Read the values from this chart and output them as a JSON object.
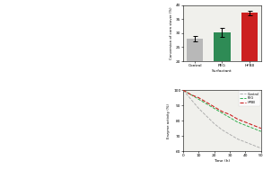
{
  "bar_categories": [
    "Control",
    "PEG",
    "HFBII"
  ],
  "bar_values": [
    28.0,
    30.3,
    37.2
  ],
  "bar_errors": [
    1.0,
    1.6,
    0.9
  ],
  "bar_colors": [
    "#b8b8b8",
    "#2e8b55",
    "#cc2020"
  ],
  "bar_ylabel": "Conversion of corn stover (%)",
  "bar_xlabel": "Surfactant",
  "bar_ylim": [
    20,
    40
  ],
  "bar_yticks": [
    20,
    25,
    30,
    35,
    40
  ],
  "line_xlabel": "Time (h)",
  "line_ylabel": "Enzyme activity (%)",
  "line_ylim": [
    60,
    100
  ],
  "line_yticks": [
    60,
    70,
    80,
    90,
    100
  ],
  "line_xlim": [
    0,
    50
  ],
  "line_xticks": [
    0,
    10,
    20,
    30,
    40,
    50
  ],
  "line_time": [
    0,
    5,
    10,
    15,
    20,
    25,
    30,
    35,
    40,
    45,
    50
  ],
  "control_values": [
    100,
    94,
    88,
    83,
    78,
    74,
    71,
    68,
    66,
    64,
    62
  ],
  "peg_values": [
    100,
    97,
    94,
    91,
    88,
    85,
    82,
    79,
    77,
    75,
    73
  ],
  "hfbii_values": [
    100,
    97,
    95,
    92,
    89,
    86,
    84,
    81,
    79,
    77,
    75
  ],
  "control_color": "#aaaaaa",
  "peg_color": "#22aa44",
  "hfbii_color": "#cc2222",
  "bg_color": "#f0f0ec",
  "left_bg": "#ffffff"
}
